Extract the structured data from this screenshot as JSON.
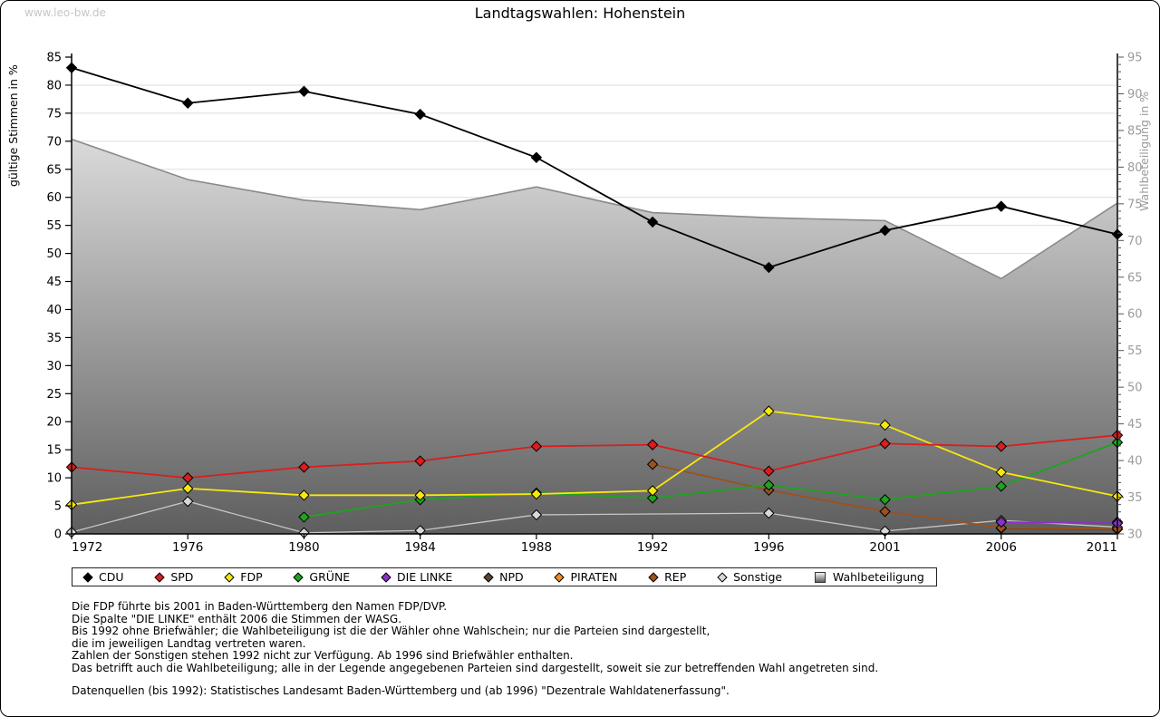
{
  "page": {
    "watermark": "www.leo-bw.de",
    "title": "Landtagswahlen: Hohenstein"
  },
  "chart_data": {
    "type": "line",
    "title": "Landtagswahlen: Hohenstein",
    "categories": [
      "1972",
      "1976",
      "1980",
      "1984",
      "1988",
      "1992",
      "1996",
      "2001",
      "2006",
      "2011"
    ],
    "left_axis": {
      "label": "gültige Stimmen in %",
      "min": 0,
      "max": 85,
      "tick_step": 5
    },
    "right_axis": {
      "label": "Wahlbeteiligung in %",
      "min": 30,
      "max": 95,
      "tick_step": 5,
      "minor_step": 1
    },
    "grid": true,
    "legend_position": "bottom",
    "series": [
      {
        "id": "cdu",
        "name": "CDU",
        "color": "#000000",
        "axis": "left",
        "values": [
          83.1,
          76.8,
          78.9,
          74.8,
          67.1,
          55.6,
          47.5,
          54.1,
          58.4,
          53.4
        ]
      },
      {
        "id": "spd",
        "name": "SPD",
        "color": "#da1d1d",
        "axis": "left",
        "values": [
          11.9,
          10.0,
          11.9,
          13.0,
          15.6,
          15.9,
          11.2,
          16.1,
          15.6,
          17.6
        ]
      },
      {
        "id": "fdp",
        "name": "FDP",
        "color": "#f8e70e",
        "axis": "left",
        "values": [
          5.2,
          8.1,
          6.9,
          6.9,
          7.1,
          7.7,
          21.9,
          19.4,
          11.0,
          6.7
        ]
      },
      {
        "id": "gruene",
        "name": "GRÜNE",
        "color": "#1ea41e",
        "axis": "left",
        "values": [
          null,
          null,
          3.0,
          6.1,
          7.3,
          6.4,
          8.7,
          6.1,
          8.5,
          16.3
        ]
      },
      {
        "id": "die-linke",
        "name": "DIE LINKE",
        "color": "#8b30c9",
        "axis": "left",
        "values": [
          null,
          null,
          null,
          null,
          null,
          null,
          null,
          null,
          2.1,
          1.9
        ]
      },
      {
        "id": "npd",
        "name": "NPD",
        "color": "#5a4632",
        "axis": "left",
        "values": [
          null,
          null,
          null,
          null,
          null,
          null,
          null,
          null,
          1.0,
          0.8
        ]
      },
      {
        "id": "piraten",
        "name": "PIRATEN",
        "color": "#ee8f20",
        "axis": "left",
        "values": [
          null,
          null,
          null,
          null,
          null,
          null,
          null,
          null,
          null,
          2.1
        ]
      },
      {
        "id": "rep",
        "name": "REP",
        "color": "#9a521e",
        "axis": "left",
        "values": [
          null,
          null,
          null,
          null,
          null,
          12.4,
          7.8,
          4.0,
          1.1,
          0.9
        ]
      },
      {
        "id": "sonstige",
        "name": "Sonstige",
        "color": "#c6c6c6",
        "axis": "left",
        "fill": "#d8d8d8",
        "values": [
          0.3,
          5.8,
          0.2,
          0.6,
          3.4,
          null,
          3.7,
          0.5,
          2.4,
          1.2
        ]
      }
    ],
    "participation": {
      "id": "wahlbeteiligung",
      "name": "Wahlbeteiligung",
      "axis": "right",
      "style": "area",
      "line_color": "#8a8a8a",
      "fill_gradient_top": "#f4f4f4",
      "fill_gradient_bottom": "#5e5e5e",
      "values": [
        83.8,
        78.3,
        75.5,
        74.2,
        77.3,
        73.8,
        73.1,
        72.7,
        64.8,
        75.1
      ]
    }
  },
  "notes": {
    "lines": [
      "Die FDP führte bis 2001 in Baden-Württemberg den Namen FDP/DVP.",
      "Die Spalte \"DIE LINKE\" enthält 2006 die Stimmen der WASG.",
      "Bis 1992 ohne Briefwähler; die Wahlbeteiligung ist die der Wähler ohne Wahlschein; nur die Parteien sind dargestellt,",
      "die im jeweiligen Landtag vertreten waren.",
      "Zahlen der Sonstigen stehen 1992 nicht zur Verfügung. Ab 1996 sind Briefwähler enthalten.",
      "Das betrifft auch die Wahlbeteiligung; alle in der Legende angegebenen Parteien sind dargestellt, soweit sie zur betreffenden Wahl angetreten sind."
    ],
    "source": "Datenquellen (bis 1992): Statistisches Landesamt Baden-Württemberg und (ab 1996) \"Dezentrale Wahldatenerfassung\"."
  }
}
